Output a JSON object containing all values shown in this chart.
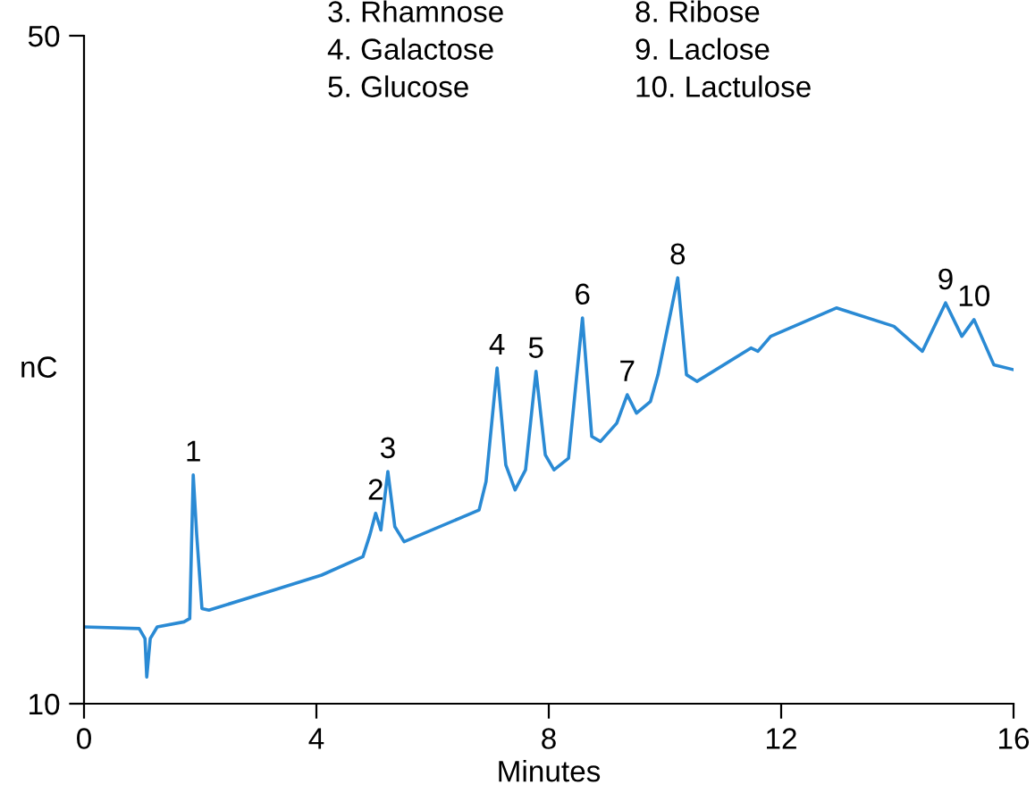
{
  "chart_data": {
    "type": "line",
    "xlabel": "Minutes",
    "ylabel": "nC",
    "xlim": [
      0,
      16
    ],
    "ylim": [
      10,
      50
    ],
    "xticks": [
      0,
      4,
      8,
      12,
      16
    ],
    "yticks": [
      10,
      50
    ],
    "grid": false,
    "legend": false,
    "marker": "none",
    "line_style": "solid",
    "series": [
      {
        "color": "#2a8ad4",
        "x": [
          0,
          0.95,
          1.05,
          1.08,
          1.14,
          1.26,
          1.72,
          1.82,
          1.88,
          1.94,
          2.03,
          2.15,
          3.17,
          4.09,
          4.8,
          4.92,
          5.02,
          5.11,
          5.23,
          5.35,
          5.51,
          6.8,
          6.92,
          7.11,
          7.26,
          7.42,
          7.6,
          7.78,
          7.94,
          8.09,
          8.34,
          8.58,
          8.74,
          8.89,
          9.17,
          9.35,
          9.51,
          9.75,
          9.88,
          10.22,
          10.37,
          10.55,
          11.48,
          11.6,
          11.82,
          12.95,
          13.94,
          14.43,
          14.83,
          15.11,
          15.32,
          15.66,
          16
        ],
        "values": [
          14.6,
          14.5,
          13.9,
          11.6,
          13.9,
          14.6,
          14.9,
          15.1,
          23.7,
          20.1,
          15.7,
          15.6,
          16.7,
          17.7,
          18.8,
          20.1,
          21.4,
          20.4,
          23.9,
          20.6,
          19.7,
          21.6,
          23.3,
          30.1,
          24.3,
          22.8,
          24.0,
          29.9,
          24.9,
          24.0,
          24.7,
          33.1,
          26.0,
          25.7,
          26.8,
          28.5,
          27.4,
          28.1,
          29.7,
          35.5,
          29.7,
          29.3,
          31.3,
          31.1,
          32.0,
          33.7,
          32.6,
          31.1,
          34.0,
          32.0,
          33.0,
          30.3,
          30.0
        ]
      }
    ],
    "annotations": [
      {
        "text": "1",
        "x": 1.88,
        "y": 23.7
      },
      {
        "text": "2",
        "x": 5.02,
        "y": 21.4
      },
      {
        "text": "3",
        "x": 5.23,
        "y": 23.9
      },
      {
        "text": "4",
        "x": 7.11,
        "y": 30.1
      },
      {
        "text": "5",
        "x": 7.78,
        "y": 29.9
      },
      {
        "text": "6",
        "x": 8.58,
        "y": 33.1
      },
      {
        "text": "7",
        "x": 9.35,
        "y": 28.5
      },
      {
        "text": "8",
        "x": 10.22,
        "y": 35.5
      },
      {
        "text": "9",
        "x": 14.83,
        "y": 34.0
      },
      {
        "text": "10",
        "x": 15.32,
        "y": 33.0
      },
      "3. Rhamnose",
      "4. Galactose",
      "5. Glucose",
      "8. Ribose",
      "9. Laclose",
      "10. Lactulose"
    ]
  }
}
